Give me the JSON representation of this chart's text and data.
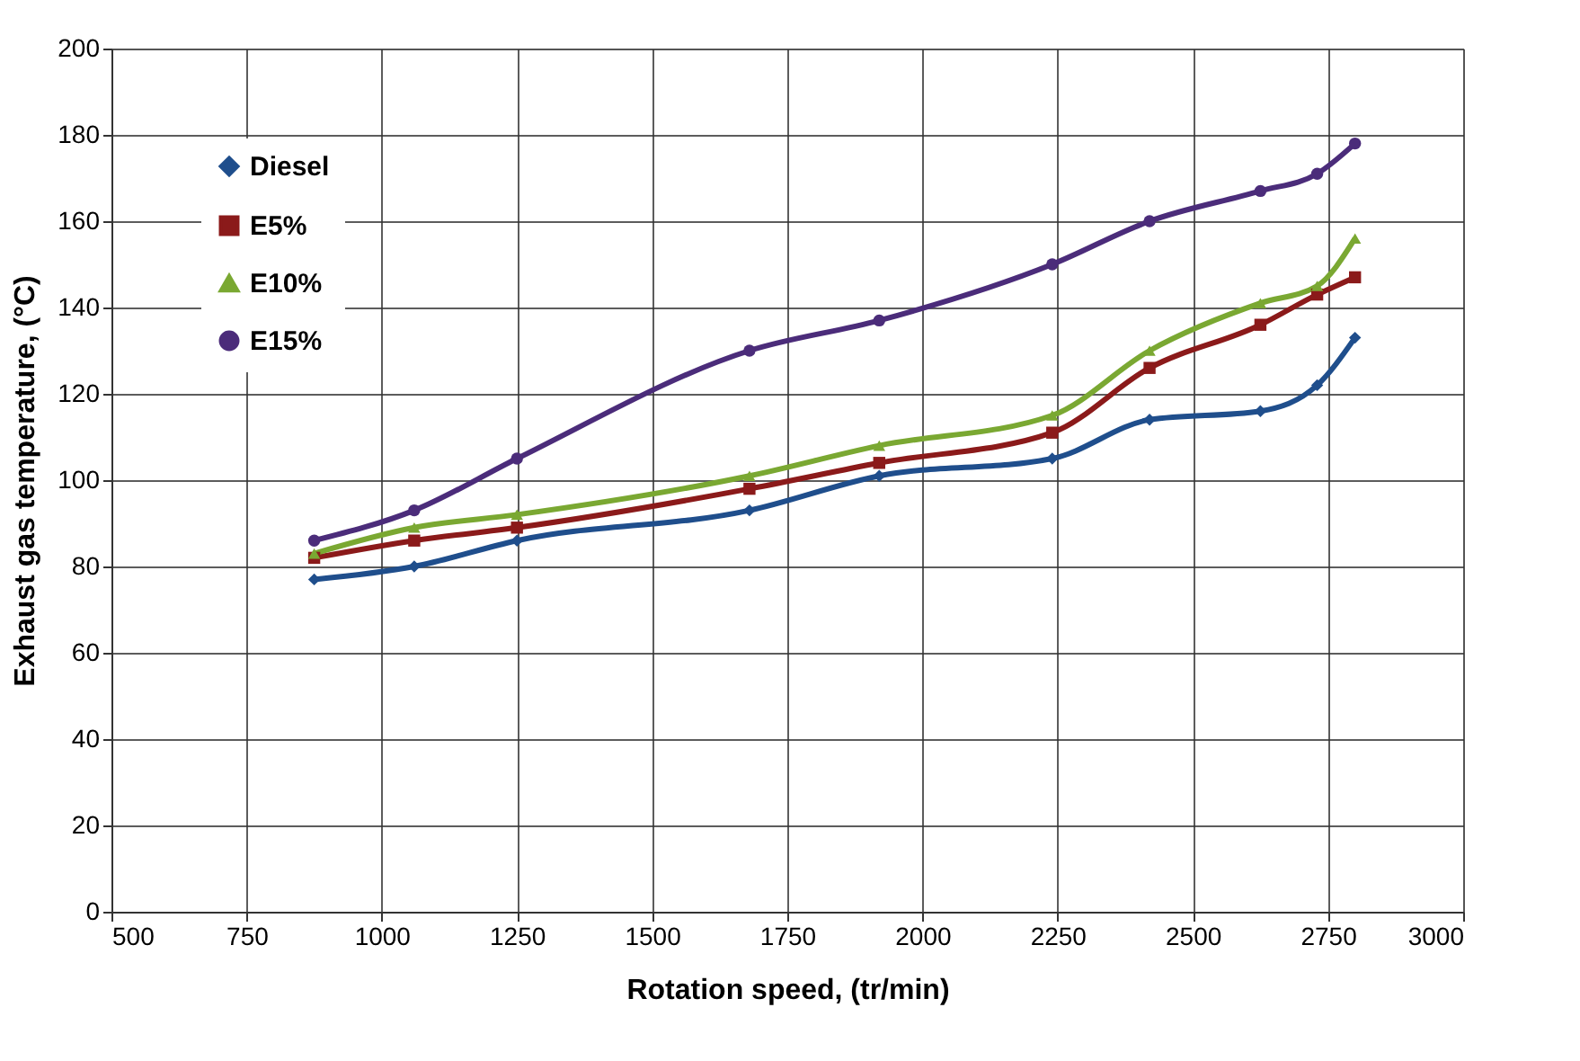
{
  "chart_data": {
    "type": "line",
    "xlabel": "Rotation speed, (tr/min)",
    "ylabel": "Exhaust gas temperature, (°C)",
    "x": [
      875,
      1060,
      1250,
      1680,
      1920,
      2240,
      2420,
      2625,
      2730,
      2800
    ],
    "series": [
      {
        "name": "Diesel",
        "color": "#1f4e8c",
        "marker": "diamond",
        "values": [
          77,
          80,
          86,
          93,
          101,
          105,
          114,
          116,
          122,
          133
        ]
      },
      {
        "name": "E5%",
        "color": "#8b1a1a",
        "marker": "square",
        "values": [
          82,
          86,
          89,
          98,
          104,
          111,
          126,
          136,
          143,
          147
        ]
      },
      {
        "name": "E10%",
        "color": "#7aa832",
        "marker": "triangle",
        "values": [
          83,
          89,
          92,
          101,
          108,
          115,
          130,
          141,
          145,
          156
        ]
      },
      {
        "name": "E15%",
        "color": "#4b2c7a",
        "marker": "circle",
        "values": [
          86,
          93,
          105,
          130,
          137,
          150,
          160,
          167,
          171,
          178
        ]
      }
    ],
    "xlim": [
      500,
      3000
    ],
    "xticks": [
      500,
      750,
      1000,
      1250,
      1500,
      1750,
      2000,
      2250,
      2500,
      2750,
      3000
    ],
    "ylim": [
      0,
      200
    ],
    "yticks": [
      0,
      20,
      40,
      60,
      80,
      100,
      120,
      140,
      160,
      180,
      200
    ],
    "grid": true,
    "legend": "top left",
    "line_style": "solid"
  }
}
